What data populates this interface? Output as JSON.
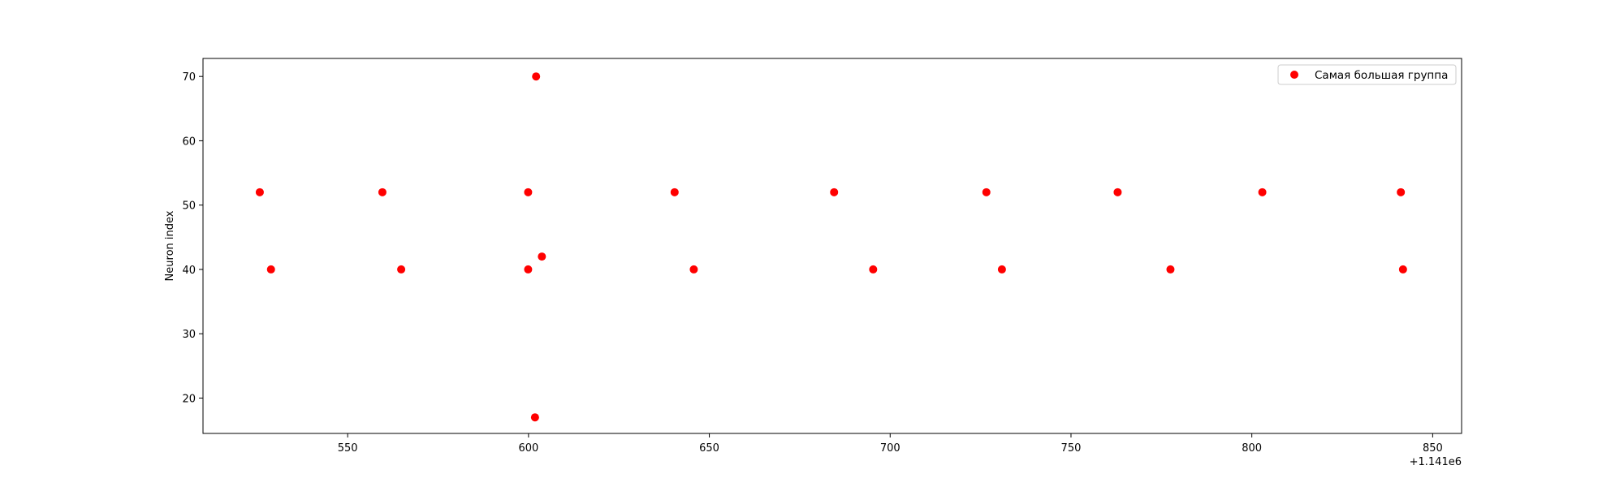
{
  "chart_data": {
    "type": "scatter",
    "title": "",
    "xlabel": "",
    "ylabel": "Neuron index",
    "x_offset_label": "+1.141e6",
    "xlim": [
      510,
      858
    ],
    "ylim": [
      14.5,
      72.8
    ],
    "xticks": [
      550,
      600,
      650,
      700,
      750,
      800,
      850
    ],
    "yticks": [
      20,
      30,
      40,
      50,
      60,
      70
    ],
    "grid": false,
    "legend_position": "top-right",
    "marker_color": "#ff0000",
    "series": [
      {
        "name": "Самая большая группа",
        "points": [
          {
            "x": 525.7,
            "y": 52
          },
          {
            "x": 528.8,
            "y": 40
          },
          {
            "x": 559.6,
            "y": 52
          },
          {
            "x": 564.8,
            "y": 40
          },
          {
            "x": 599.9,
            "y": 52
          },
          {
            "x": 599.9,
            "y": 40
          },
          {
            "x": 601.8,
            "y": 17
          },
          {
            "x": 602.1,
            "y": 70
          },
          {
            "x": 603.7,
            "y": 42
          },
          {
            "x": 640.4,
            "y": 52
          },
          {
            "x": 645.7,
            "y": 40
          },
          {
            "x": 684.5,
            "y": 52
          },
          {
            "x": 695.3,
            "y": 40
          },
          {
            "x": 726.6,
            "y": 52
          },
          {
            "x": 730.9,
            "y": 40
          },
          {
            "x": 762.9,
            "y": 52
          },
          {
            "x": 777.5,
            "y": 40
          },
          {
            "x": 802.9,
            "y": 52
          },
          {
            "x": 841.2,
            "y": 52
          },
          {
            "x": 841.8,
            "y": 40
          }
        ]
      }
    ]
  }
}
